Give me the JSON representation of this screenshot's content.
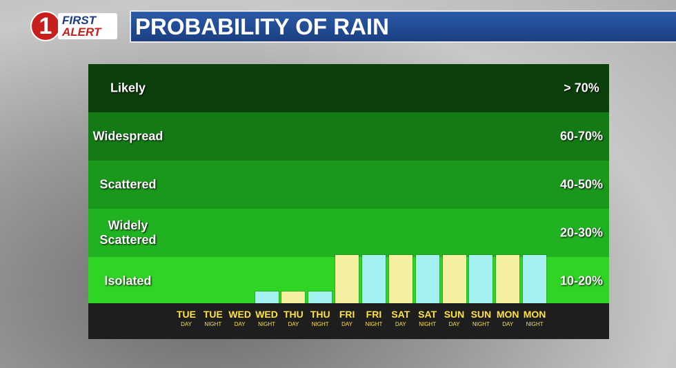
{
  "logo": {
    "number": "1",
    "first": "FIRST",
    "alert": "ALERT"
  },
  "header": {
    "title": "PROBABILITY OF RAIN"
  },
  "bands": [
    {
      "label": "Likely",
      "range": "> 70%",
      "color": "#0b3f0b"
    },
    {
      "label": "Widespread",
      "range": "60-70%",
      "color": "#137a16"
    },
    {
      "label": "Scattered",
      "range": "40-50%",
      "color": "#1a981c"
    },
    {
      "label": "Widely\nScattered",
      "range": "20-30%",
      "color": "#21b221"
    },
    {
      "label": "Isolated",
      "range": "10-20%",
      "color": "#30d424"
    }
  ],
  "days": [
    {
      "name": "TUE",
      "period": "DAY",
      "value": 0,
      "color": "#f5f0a0"
    },
    {
      "name": "TUE",
      "period": "NIGHT",
      "value": 0,
      "color": "#a3f0f0"
    },
    {
      "name": "WED",
      "period": "DAY",
      "value": 0,
      "color": "#f5f0a0"
    },
    {
      "name": "WED",
      "period": "NIGHT",
      "value": 0.25,
      "color": "#a3f0f0"
    },
    {
      "name": "THU",
      "period": "DAY",
      "value": 0.25,
      "color": "#f5f0a0"
    },
    {
      "name": "THU",
      "period": "NIGHT",
      "value": 0.25,
      "color": "#a3f0f0"
    },
    {
      "name": "FRI",
      "period": "DAY",
      "value": 1,
      "color": "#f5f0a0"
    },
    {
      "name": "FRI",
      "period": "NIGHT",
      "value": 1,
      "color": "#a3f0f0"
    },
    {
      "name": "SAT",
      "period": "DAY",
      "value": 1,
      "color": "#f5f0a0"
    },
    {
      "name": "SAT",
      "period": "NIGHT",
      "value": 1,
      "color": "#a3f0f0"
    },
    {
      "name": "SUN",
      "period": "DAY",
      "value": 1,
      "color": "#f5f0a0"
    },
    {
      "name": "SUN",
      "period": "NIGHT",
      "value": 1,
      "color": "#a3f0f0"
    },
    {
      "name": "MON",
      "period": "DAY",
      "value": 1,
      "color": "#f5f0a0"
    },
    {
      "name": "MON",
      "period": "NIGHT",
      "value": 1,
      "color": "#a3f0f0"
    }
  ]
}
